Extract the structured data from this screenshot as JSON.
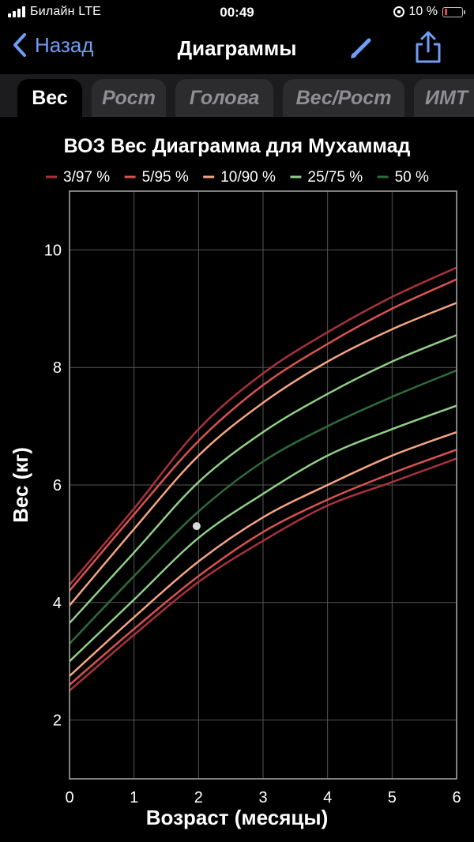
{
  "status_bar": {
    "carrier": "Билайн  LTE",
    "time": "00:49",
    "battery": "10 %"
  },
  "nav": {
    "back_label": "Назад",
    "title": "Диаграммы"
  },
  "tabs": [
    {
      "label": "Вес",
      "active": true
    },
    {
      "label": "Рост",
      "active": false
    },
    {
      "label": "Голова",
      "active": false
    },
    {
      "label": "Вес/Рост",
      "active": false
    },
    {
      "label": "ИМТ",
      "active": false
    }
  ],
  "colors": {
    "accent": "#6f9df4",
    "p3_97": "#a8323c",
    "p5_95": "#d9534f",
    "p10_90": "#f4a582",
    "p25_75": "#8fcf86",
    "p50": "#2e6b3a",
    "point": "#d9d9d9"
  },
  "chart_data": {
    "type": "line",
    "title": "ВОЗ Вес Диаграмма для Мухаммад",
    "xlabel": "Возраст (месяцы)",
    "ylabel": "Вес (кг)",
    "xlim": [
      0,
      6
    ],
    "ylim": [
      1,
      11
    ],
    "xticks": [
      0,
      1,
      2,
      3,
      4,
      5,
      6
    ],
    "yticks": [
      2,
      4,
      6,
      8,
      10
    ],
    "grid": true,
    "legend_position": "top",
    "legend": [
      {
        "label": "3/97 %",
        "color": "#a8323c"
      },
      {
        "label": "5/95 %",
        "color": "#d9534f"
      },
      {
        "label": "10/90 %",
        "color": "#f4a582"
      },
      {
        "label": "25/75 %",
        "color": "#8fcf86"
      },
      {
        "label": "50 %",
        "color": "#2e6b3a"
      }
    ],
    "x": [
      0,
      1,
      2,
      3,
      4,
      5,
      6
    ],
    "series": [
      {
        "group": "3/97 %",
        "color": "#a8323c",
        "values": [
          4.3,
          5.6,
          6.95,
          7.9,
          8.6,
          9.2,
          9.7
        ]
      },
      {
        "group": "5/95 %",
        "color": "#d9534f",
        "values": [
          4.2,
          5.5,
          6.75,
          7.7,
          8.4,
          9.0,
          9.5
        ]
      },
      {
        "group": "10/90 %",
        "color": "#f4a582",
        "values": [
          3.95,
          5.25,
          6.5,
          7.4,
          8.1,
          8.65,
          9.1
        ]
      },
      {
        "group": "25/75 %",
        "color": "#8fcf86",
        "values": [
          3.65,
          4.85,
          6.05,
          6.9,
          7.55,
          8.1,
          8.55
        ]
      },
      {
        "group": "50 %",
        "color": "#2e6b3a",
        "values": [
          3.3,
          4.45,
          5.55,
          6.4,
          7.0,
          7.5,
          7.95
        ]
      },
      {
        "group": "25/75 %",
        "color": "#8fcf86",
        "values": [
          3.0,
          4.05,
          5.1,
          5.85,
          6.5,
          6.95,
          7.35
        ]
      },
      {
        "group": "10/90 %",
        "color": "#f4a582",
        "values": [
          2.75,
          3.75,
          4.7,
          5.45,
          6.0,
          6.5,
          6.9
        ]
      },
      {
        "group": "5/95 %",
        "color": "#d9534f",
        "values": [
          2.6,
          3.55,
          4.45,
          5.2,
          5.75,
          6.2,
          6.6
        ]
      },
      {
        "group": "3/97 %",
        "color": "#a8323c",
        "values": [
          2.5,
          3.45,
          4.35,
          5.05,
          5.65,
          6.05,
          6.45
        ]
      }
    ],
    "points": [
      {
        "x": 1.97,
        "y": 5.3
      }
    ]
  }
}
